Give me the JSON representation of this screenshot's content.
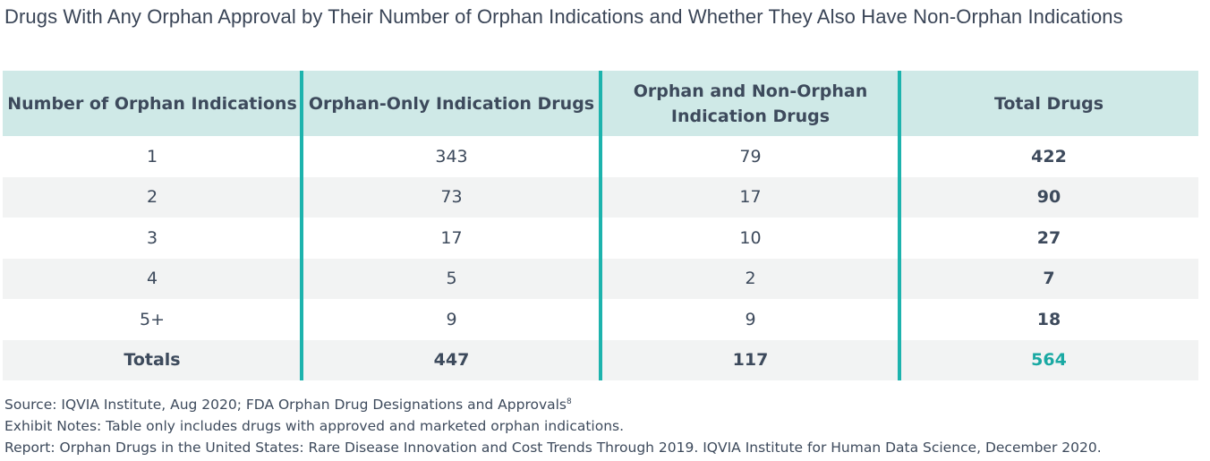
{
  "title": "Drugs With Any Orphan Approval by Their Number of Orphan Indications and Whether They Also Have Non-Orphan Indications",
  "colors": {
    "header_bg": "#cfe9e7",
    "divider": "#1db3ad",
    "accent": "#1aa9a3",
    "alt_row": "#f2f3f3"
  },
  "chart_data": {
    "type": "table",
    "columns": [
      "Number of Orphan Indications",
      "Orphan-Only Indication Drugs",
      "Orphan and Non-Orphan Indication Drugs",
      "Total Drugs"
    ],
    "rows": [
      [
        "1",
        "343",
        "79",
        "422"
      ],
      [
        "2",
        "73",
        "17",
        "90"
      ],
      [
        "3",
        "17",
        "10",
        "27"
      ],
      [
        "4",
        "5",
        "2",
        "7"
      ],
      [
        "5+",
        "9",
        "9",
        "18"
      ],
      [
        "Totals",
        "447",
        "117",
        "564"
      ]
    ]
  },
  "footer": {
    "source": "Source:  IQVIA Institute, Aug 2020; FDA Orphan Drug Designations and Approvals",
    "source_sup": "8",
    "notes": "Exhibit Notes: Table only includes drugs with approved and marketed orphan indications.",
    "report": "Report: Orphan Drugs in the United States: Rare Disease Innovation and Cost Trends Through 2019. IQVIA Institute for Human Data Science, December 2020."
  }
}
